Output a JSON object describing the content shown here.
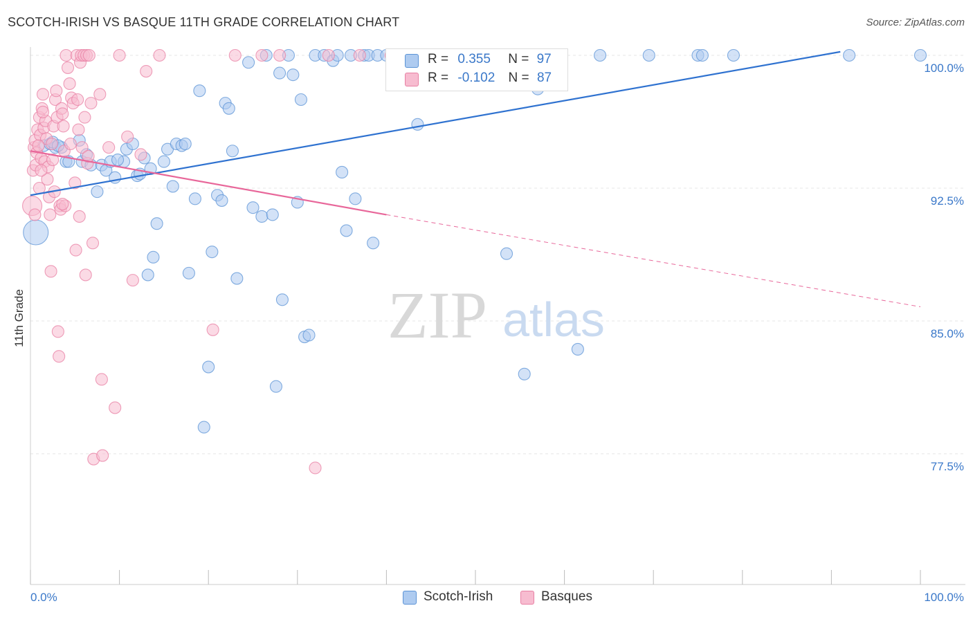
{
  "title": "SCOTCH-IRISH VS BASQUE 11TH GRADE CORRELATION CHART",
  "source": "Source: ZipAtlas.com",
  "watermark": {
    "zip": "ZIP",
    "atlas": "atlas"
  },
  "legend": [
    {
      "r_label": "R =",
      "r_value": "0.355",
      "n_label": "N =",
      "n_value": "97"
    },
    {
      "r_label": "R =",
      "r_value": "-0.102",
      "n_label": "N =",
      "n_value": "87"
    }
  ],
  "colors": {
    "scotch_irish_fill": "#aecbf0",
    "scotch_irish_stroke": "#5b93d6",
    "scotch_irish_line": "#2f72d0",
    "basques_fill": "#f7bcd0",
    "basques_stroke": "#e87fa3",
    "basques_line": "#e8679a",
    "axis_label": "#3a78c9",
    "grid": "#e6e6e6"
  },
  "chart_data": {
    "type": "scatter",
    "title": "SCOTCH-IRISH VS BASQUE 11TH GRADE CORRELATION CHART",
    "xlabel": "",
    "ylabel": "11th Grade",
    "xlim": [
      0,
      100
    ],
    "ylim": [
      71,
      101.5
    ],
    "x_tick_labels": [
      "0.0%",
      "100.0%"
    ],
    "y_ticks": [
      {
        "value": 100,
        "label": "100.0%"
      },
      {
        "value": 92.5,
        "label": "92.5%"
      },
      {
        "value": 85,
        "label": "85.0%"
      },
      {
        "value": 77.5,
        "label": "77.5%"
      }
    ],
    "grid": true,
    "legend_position": "bottom",
    "series": [
      {
        "name": "Scotch-Irish",
        "trend": {
          "x": [
            0,
            91
          ],
          "y": [
            92.1,
            100.2
          ],
          "dashed_to": null
        },
        "points": [
          [
            0.6,
            90.0
          ],
          [
            1.5,
            94.9
          ],
          [
            2.2,
            95.0
          ],
          [
            2.8,
            94.8
          ],
          [
            3.5,
            94.8
          ],
          [
            4.0,
            94.0
          ],
          [
            4.3,
            94.0
          ],
          [
            5.5,
            95.2
          ],
          [
            5.8,
            94.0
          ],
          [
            6.3,
            94.4
          ],
          [
            6.8,
            93.8
          ],
          [
            7.5,
            92.3
          ],
          [
            8.0,
            93.8
          ],
          [
            8.5,
            93.5
          ],
          [
            9.0,
            94.0
          ],
          [
            9.5,
            93.1
          ],
          [
            10.5,
            94.0
          ],
          [
            10.8,
            94.7
          ],
          [
            11.5,
            95.0
          ],
          [
            12.0,
            93.2
          ],
          [
            12.8,
            94.2
          ],
          [
            12.3,
            93.3
          ],
          [
            13.5,
            93.6
          ],
          [
            14.2,
            90.5
          ],
          [
            13.2,
            87.6
          ],
          [
            13.8,
            88.6
          ],
          [
            15.4,
            94.7
          ],
          [
            16.0,
            92.6
          ],
          [
            16.4,
            95.0
          ],
          [
            17.0,
            94.9
          ],
          [
            17.4,
            95.0
          ],
          [
            17.8,
            87.7
          ],
          [
            18.5,
            91.9
          ],
          [
            19.0,
            98.0
          ],
          [
            19.5,
            79.0
          ],
          [
            20.0,
            82.4
          ],
          [
            20.4,
            88.9
          ],
          [
            21.0,
            92.1
          ],
          [
            21.5,
            91.8
          ],
          [
            21.9,
            97.3
          ],
          [
            22.3,
            97.0
          ],
          [
            22.7,
            94.6
          ],
          [
            23.2,
            87.4
          ],
          [
            24.5,
            99.6
          ],
          [
            25.0,
            91.4
          ],
          [
            26.0,
            90.9
          ],
          [
            26.5,
            100.0
          ],
          [
            27.2,
            91.0
          ],
          [
            27.6,
            81.3
          ],
          [
            28.0,
            99.0
          ],
          [
            28.3,
            86.2
          ],
          [
            29.0,
            100.0
          ],
          [
            29.5,
            98.9
          ],
          [
            30.0,
            91.7
          ],
          [
            30.4,
            97.5
          ],
          [
            30.8,
            84.1
          ],
          [
            31.3,
            84.2
          ],
          [
            32.0,
            100.0
          ],
          [
            33.0,
            100.0
          ],
          [
            34.0,
            99.7
          ],
          [
            34.5,
            100.0
          ],
          [
            35.0,
            93.4
          ],
          [
            35.5,
            90.1
          ],
          [
            36.0,
            100.0
          ],
          [
            36.5,
            91.9
          ],
          [
            37.5,
            100.0
          ],
          [
            38.0,
            100.0
          ],
          [
            38.5,
            89.4
          ],
          [
            39.0,
            100.0
          ],
          [
            40.0,
            100.0
          ],
          [
            41.0,
            100.0
          ],
          [
            42.0,
            100.0
          ],
          [
            43.0,
            100.0
          ],
          [
            43.5,
            96.1
          ],
          [
            44.5,
            100.0
          ],
          [
            45.5,
            100.0
          ],
          [
            46.0,
            100.0
          ],
          [
            47.5,
            100.0
          ],
          [
            48.0,
            100.0
          ],
          [
            50.0,
            100.0
          ],
          [
            52.0,
            100.0
          ],
          [
            53.5,
            88.8
          ],
          [
            55.5,
            82.0
          ],
          [
            57.0,
            98.1
          ],
          [
            59.0,
            100.0
          ],
          [
            61.5,
            83.4
          ],
          [
            64.0,
            100.0
          ],
          [
            69.5,
            100.0
          ],
          [
            75.0,
            100.0
          ],
          [
            75.5,
            100.0
          ],
          [
            79.0,
            100.0
          ],
          [
            92.0,
            100.0
          ],
          [
            100.0,
            100.0
          ],
          [
            2.5,
            95.1
          ],
          [
            3.1,
            94.9
          ],
          [
            9.8,
            94.1
          ],
          [
            15.0,
            94.0
          ]
        ],
        "sizes": {
          "0": 36
        }
      },
      {
        "name": "Basques",
        "trend": {
          "x": [
            0,
            40
          ],
          "y": [
            94.6,
            91.0
          ],
          "dashed_to": [
            100,
            85.8
          ]
        },
        "points": [
          [
            0.2,
            91.5
          ],
          [
            0.3,
            93.5
          ],
          [
            0.4,
            94.8
          ],
          [
            0.5,
            95.2
          ],
          [
            0.6,
            93.8
          ],
          [
            0.7,
            94.5
          ],
          [
            0.8,
            95.8
          ],
          [
            1.0,
            96.5
          ],
          [
            1.1,
            95.5
          ],
          [
            1.2,
            94.2
          ],
          [
            1.3,
            97.0
          ],
          [
            1.4,
            97.8
          ],
          [
            1.5,
            95.9
          ],
          [
            1.6,
            94.0
          ],
          [
            1.7,
            96.3
          ],
          [
            1.8,
            95.3
          ],
          [
            1.9,
            93.0
          ],
          [
            2.0,
            93.7
          ],
          [
            2.1,
            92.0
          ],
          [
            2.2,
            91.0
          ],
          [
            2.3,
            87.8
          ],
          [
            2.4,
            95.0
          ],
          [
            2.6,
            96.0
          ],
          [
            2.7,
            92.3
          ],
          [
            2.8,
            97.5
          ],
          [
            2.9,
            98.0
          ],
          [
            3.0,
            96.5
          ],
          [
            3.1,
            84.4
          ],
          [
            3.2,
            83.0
          ],
          [
            3.3,
            91.5
          ],
          [
            3.4,
            91.3
          ],
          [
            3.5,
            97.0
          ],
          [
            3.6,
            96.7
          ],
          [
            3.7,
            96.0
          ],
          [
            3.8,
            94.6
          ],
          [
            3.9,
            91.5
          ],
          [
            4.0,
            100.0
          ],
          [
            4.2,
            99.3
          ],
          [
            4.4,
            98.4
          ],
          [
            4.6,
            97.6
          ],
          [
            4.8,
            97.3
          ],
          [
            5.0,
            92.8
          ],
          [
            5.1,
            89.0
          ],
          [
            5.2,
            100.0
          ],
          [
            5.3,
            97.5
          ],
          [
            5.4,
            95.8
          ],
          [
            5.5,
            90.9
          ],
          [
            5.6,
            99.6
          ],
          [
            5.7,
            100.0
          ],
          [
            5.8,
            94.8
          ],
          [
            6.0,
            100.0
          ],
          [
            6.1,
            96.5
          ],
          [
            6.2,
            87.6
          ],
          [
            6.3,
            100.0
          ],
          [
            6.4,
            93.9
          ],
          [
            6.5,
            94.3
          ],
          [
            6.6,
            100.0
          ],
          [
            6.8,
            97.3
          ],
          [
            7.0,
            89.4
          ],
          [
            7.1,
            77.2
          ],
          [
            7.8,
            97.8
          ],
          [
            8.0,
            81.7
          ],
          [
            8.1,
            77.4
          ],
          [
            8.8,
            94.8
          ],
          [
            9.5,
            80.1
          ],
          [
            10.0,
            100.0
          ],
          [
            10.9,
            95.4
          ],
          [
            11.5,
            87.3
          ],
          [
            12.4,
            94.4
          ],
          [
            13.0,
            99.1
          ],
          [
            14.5,
            100.0
          ],
          [
            20.5,
            84.5
          ],
          [
            23.0,
            100.0
          ],
          [
            26.0,
            100.0
          ],
          [
            28.0,
            100.0
          ],
          [
            32.0,
            76.7
          ],
          [
            33.5,
            100.0
          ],
          [
            37.0,
            100.0
          ],
          [
            40.5,
            100.0
          ],
          [
            1.0,
            92.5
          ],
          [
            0.9,
            94.9
          ],
          [
            1.2,
            93.5
          ],
          [
            2.5,
            94.1
          ],
          [
            3.6,
            91.6
          ],
          [
            4.5,
            95.0
          ],
          [
            0.5,
            91.0
          ],
          [
            1.4,
            96.8
          ]
        ],
        "sizes": {
          "0": 28
        }
      }
    ]
  }
}
